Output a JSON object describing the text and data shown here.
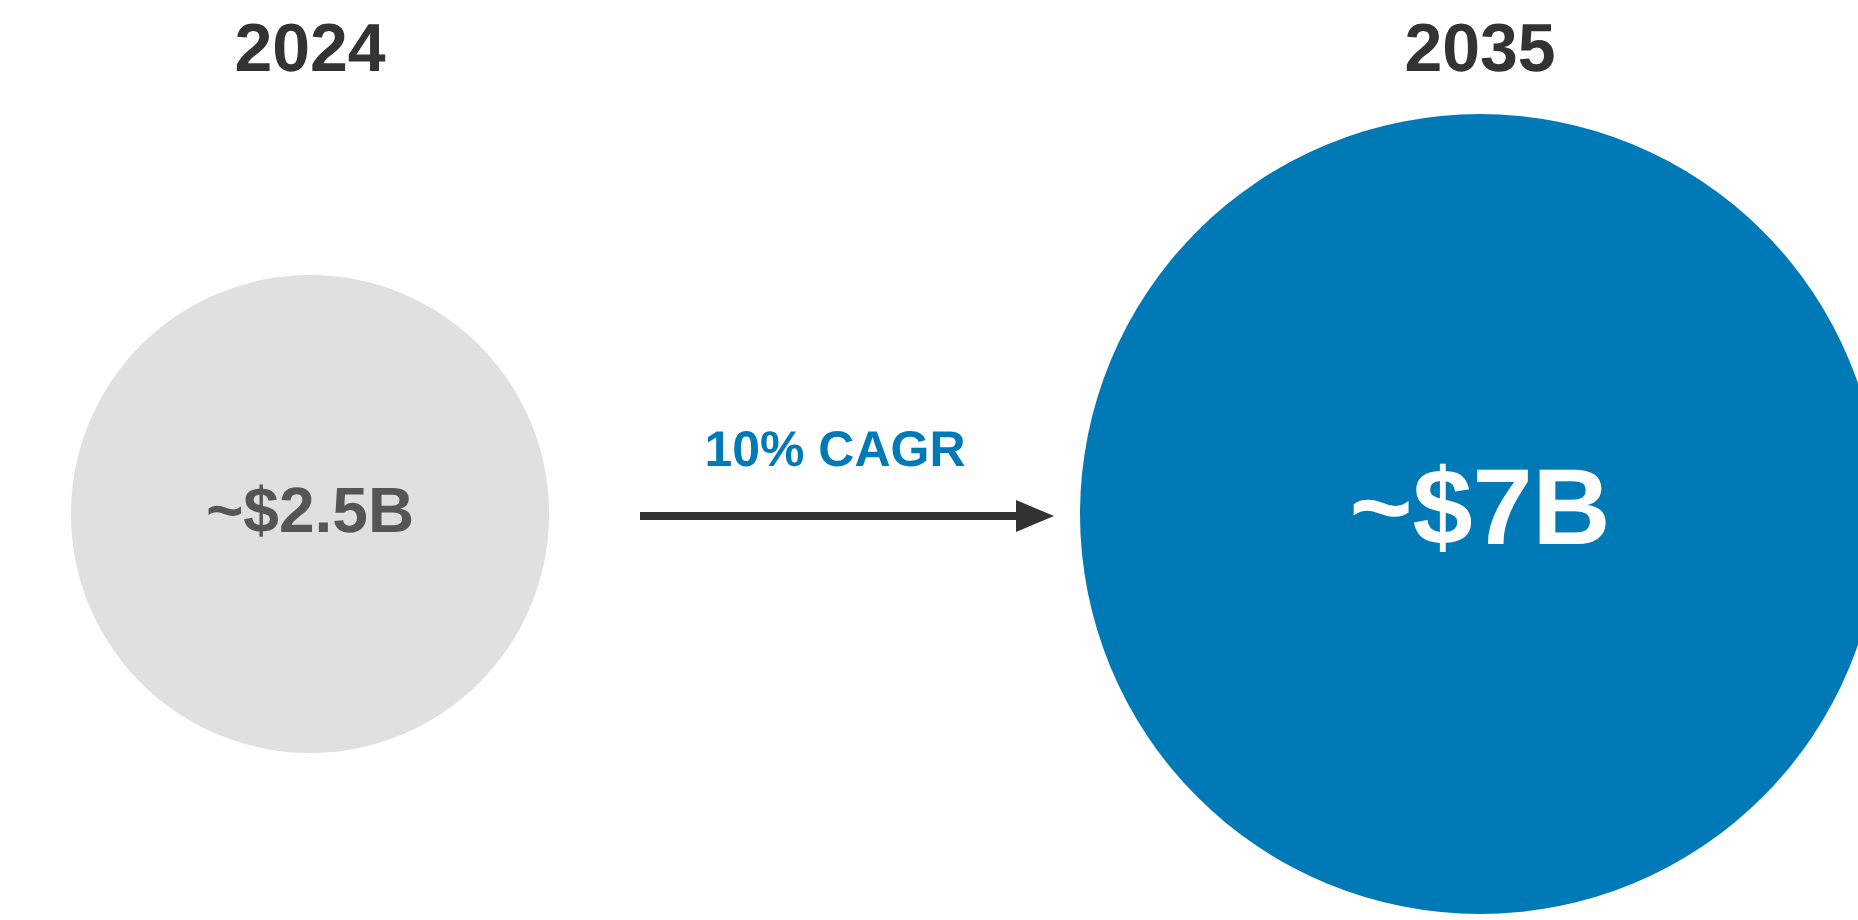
{
  "chart_data": {
    "type": "other",
    "categories": [
      "2024",
      "2035"
    ],
    "values": [
      2.5,
      7
    ],
    "value_labels": [
      "~$2.5B",
      "~$7B"
    ],
    "colors": [
      "#e0e0e0",
      "#007ab7"
    ],
    "annotations": [
      "10% CAGR"
    ]
  }
}
